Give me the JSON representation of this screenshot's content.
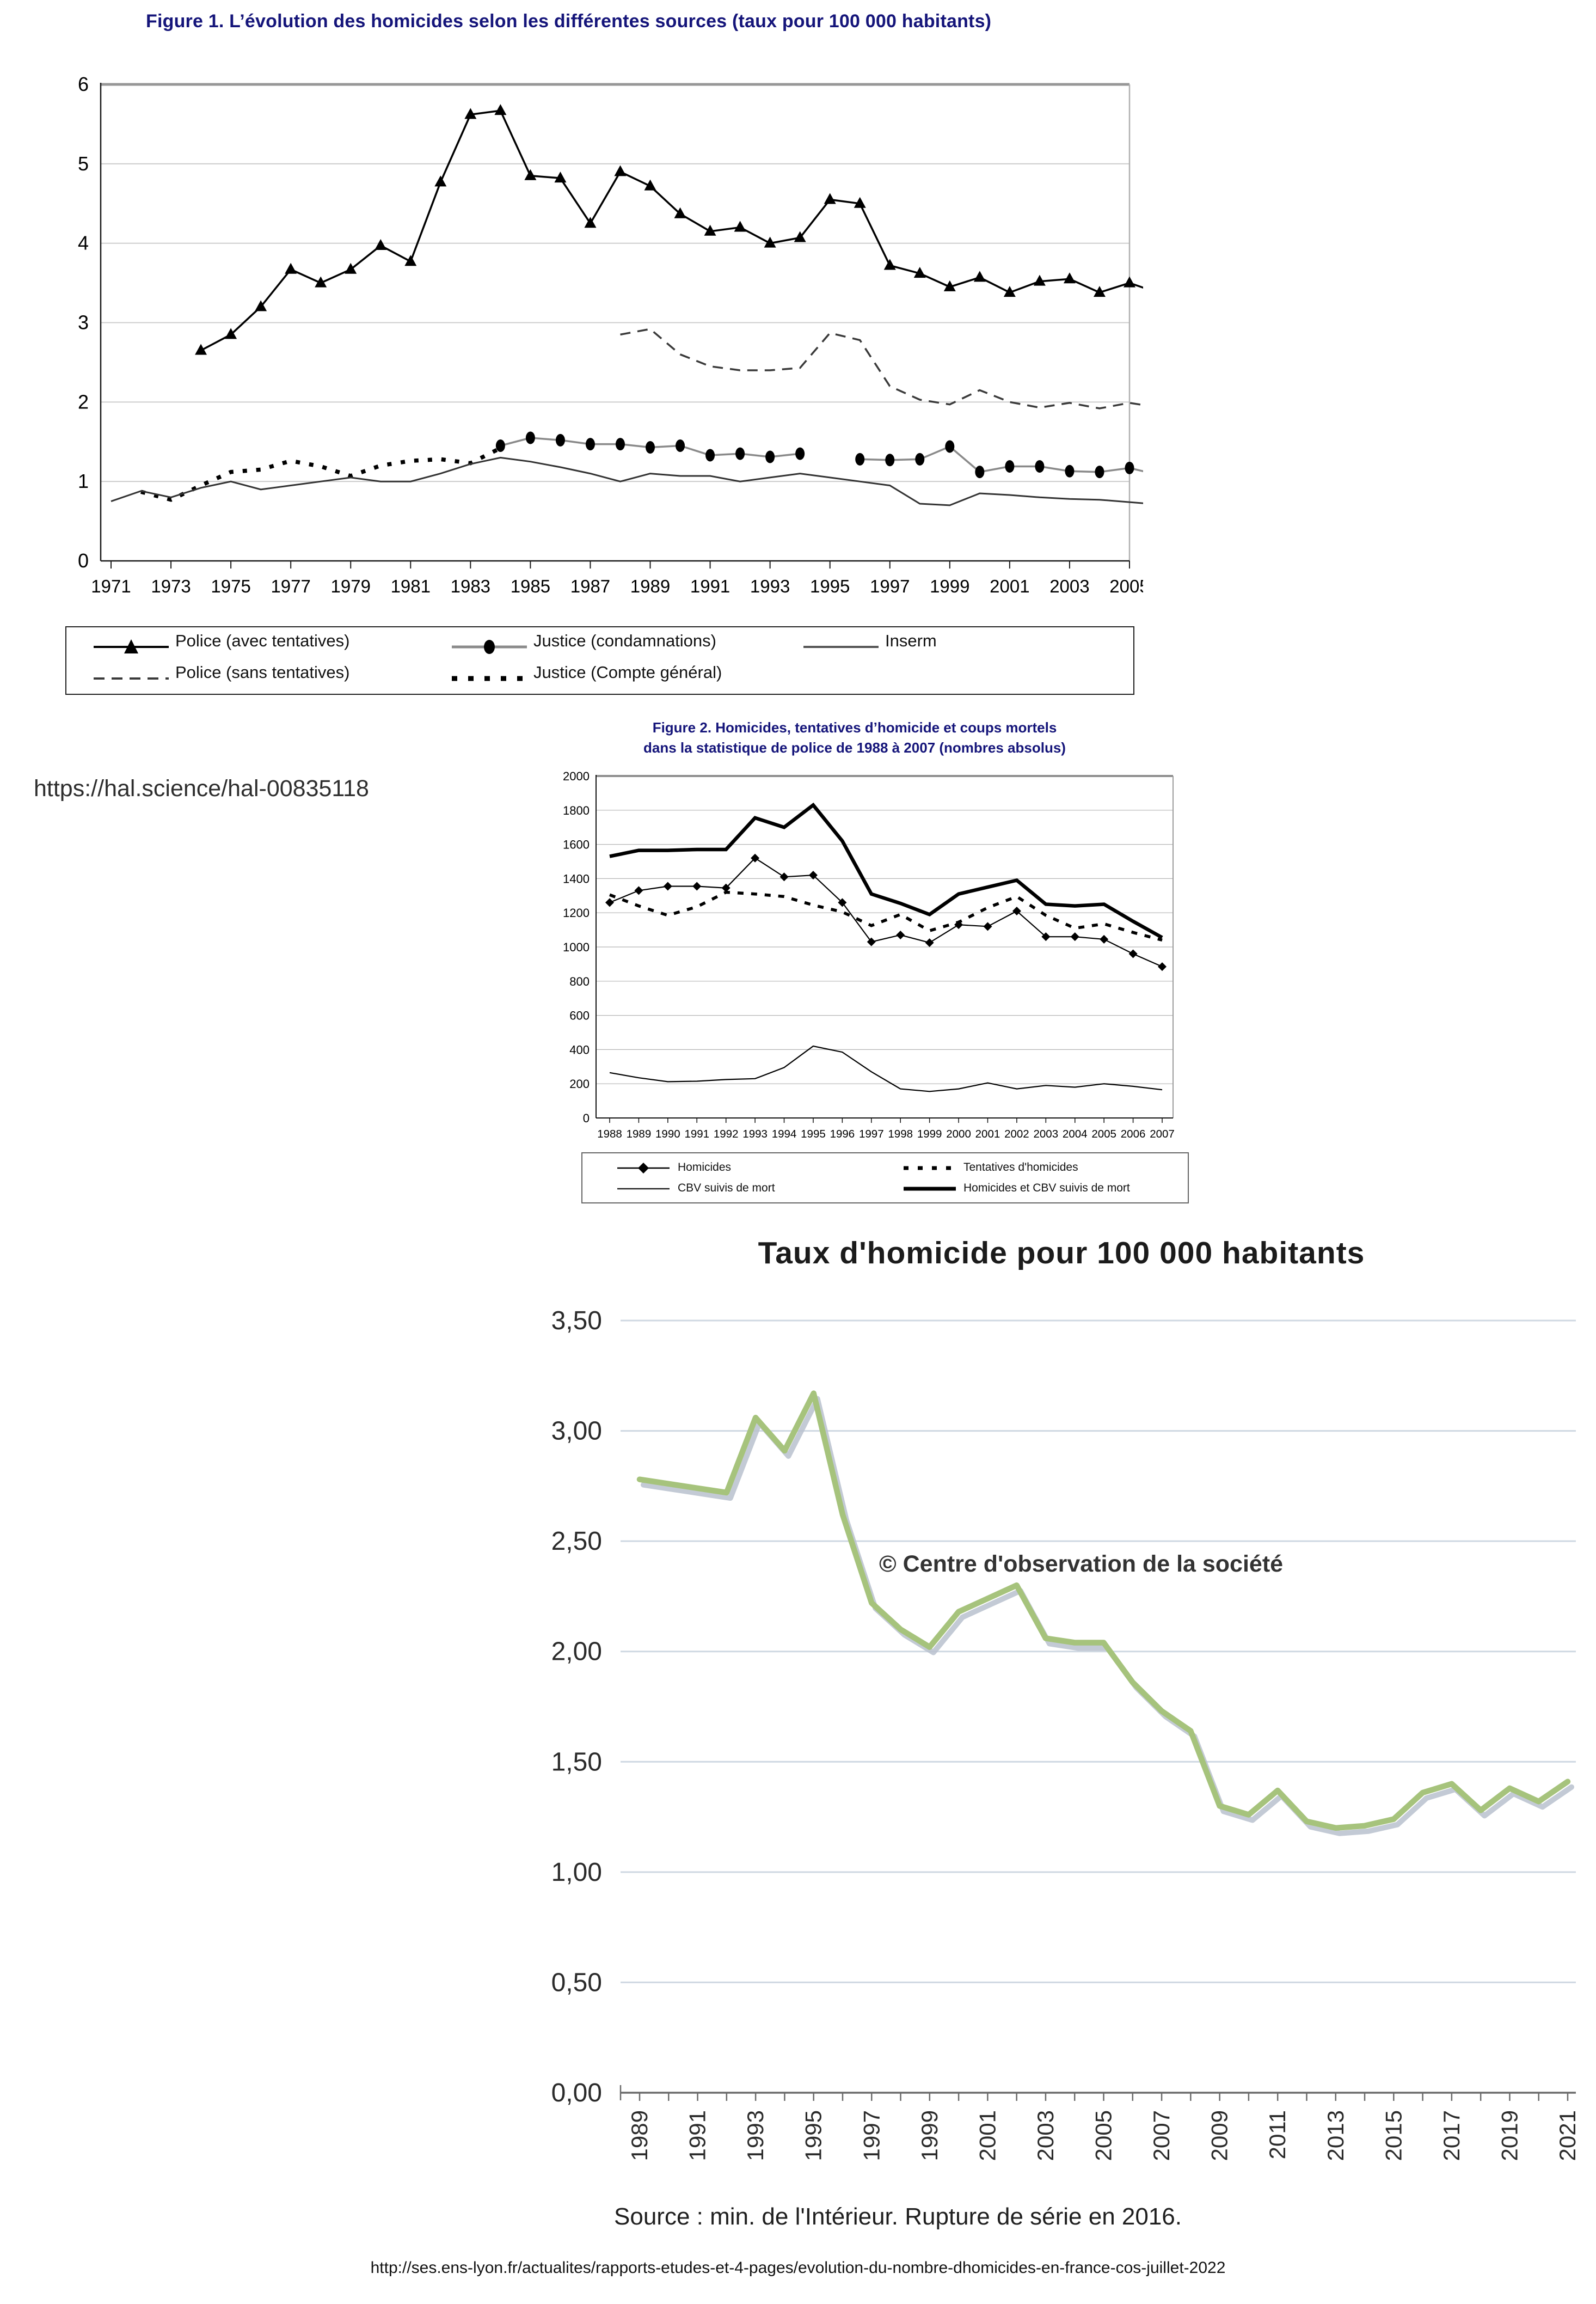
{
  "page": {
    "hal_link": "https://hal.science/hal-00835118",
    "bottom_link": "http://ses.ens-lyon.fr/actualites/rapports-etudes-et-4-pages/evolution-du-nombre-dhomicides-en-france-cos-juillet-2022"
  },
  "chart_data": [
    {
      "id": "figure1",
      "type": "line",
      "title": "Figure 1. L’évolution des homicides selon les différentes sources (taux pour 100 000 habitants)",
      "xlabel": "",
      "ylabel": "",
      "ylim": [
        0,
        6
      ],
      "y_ticks": [
        0,
        1,
        2,
        3,
        4,
        5,
        6
      ],
      "x_range": [
        1971,
        2006
      ],
      "x_tick_labels": [
        1971,
        1973,
        1975,
        1977,
        1979,
        1981,
        1983,
        1985,
        1987,
        1989,
        1991,
        1993,
        1995,
        1997,
        1999,
        2001,
        2003,
        2005
      ],
      "grid": true,
      "legend_position": "bottom",
      "legend": [
        "Police (avec tentatives)",
        "Justice (condamnations)",
        "Inserm",
        "Police (sans tentatives)",
        "Justice (Compte général)"
      ],
      "series": [
        {
          "name": "Police (avec tentatives)",
          "style": "solid",
          "marker": "triangle",
          "start_year": 1974,
          "values": [
            2.65,
            2.85,
            3.2,
            3.67,
            3.5,
            3.67,
            3.97,
            3.77,
            4.77,
            5.62,
            5.67,
            4.85,
            4.82,
            4.25,
            4.9,
            4.72,
            4.37,
            4.15,
            4.2,
            4.0,
            4.07,
            4.55,
            4.5,
            3.72,
            3.62,
            3.45,
            3.57,
            3.38,
            3.52,
            3.55,
            3.38,
            3.5,
            3.37
          ]
        },
        {
          "name": "Police (sans tentatives)",
          "style": "dashed",
          "marker": null,
          "start_year": 1988,
          "values": [
            2.85,
            2.92,
            2.6,
            2.45,
            2.4,
            2.4,
            2.43,
            2.87,
            2.78,
            2.2,
            2.03,
            1.97,
            2.15,
            2.0,
            1.93,
            1.99,
            1.92,
            1.99,
            1.93
          ]
        },
        {
          "name": "Justice (condamnations)",
          "style": "solid-gray",
          "marker": "ellipse",
          "start_year": 1984,
          "values": [
            1.45,
            1.55,
            1.52,
            1.47,
            1.47,
            1.43,
            1.45,
            1.33,
            1.35,
            1.31,
            1.35,
            null,
            1.28,
            1.27,
            1.28,
            1.44,
            1.12,
            1.19,
            1.19,
            1.13,
            1.12,
            1.17,
            1.08
          ]
        },
        {
          "name": "Justice (Compte général)",
          "style": "dotted",
          "marker": null,
          "start_year": 1972,
          "values": [
            0.87,
            0.77,
            0.95,
            1.12,
            1.15,
            1.26,
            1.19,
            1.07,
            1.2,
            1.26,
            1.28,
            1.23,
            1.42
          ]
        },
        {
          "name": "Inserm",
          "style": "solid-thin",
          "marker": null,
          "start_year": 1971,
          "values": [
            0.75,
            0.88,
            0.8,
            0.92,
            1.0,
            0.9,
            0.95,
            1.0,
            1.05,
            1.0,
            1.0,
            1.1,
            1.22,
            1.3,
            1.25,
            1.18,
            1.1,
            1.0,
            1.1,
            1.07,
            1.07,
            1.0,
            1.05,
            1.1,
            1.05,
            1.0,
            0.95,
            0.72,
            0.7,
            0.85,
            0.83,
            0.8,
            0.78,
            0.77,
            0.74,
            0.71
          ]
        }
      ]
    },
    {
      "id": "figure2",
      "type": "line",
      "title_line1": "Figure 2. Homicides, tentatives d’homicide et coups mortels",
      "title_line2": "dans la statistique de police de 1988 à 2007 (nombres absolus)",
      "ylim": [
        0,
        2000
      ],
      "y_ticks": [
        0,
        200,
        400,
        600,
        800,
        1000,
        1200,
        1400,
        1600,
        1800,
        2000
      ],
      "x_range": [
        1988,
        2007
      ],
      "x_tick_labels": [
        1988,
        1989,
        1990,
        1991,
        1992,
        1993,
        1994,
        1995,
        1996,
        1997,
        1998,
        1999,
        2000,
        2001,
        2002,
        2003,
        2004,
        2005,
        2006,
        2007
      ],
      "grid": true,
      "legend_position": "bottom",
      "legend": [
        "Homicides",
        "Tentatives d'homicides",
        "CBV suivis de mort",
        "Homicides et CBV suivis de mort"
      ],
      "series": [
        {
          "name": "Homicides",
          "style": "solid-thin",
          "marker": "diamond",
          "start_year": 1988,
          "values": [
            1260,
            1330,
            1355,
            1355,
            1345,
            1520,
            1410,
            1420,
            1260,
            1030,
            1070,
            1025,
            1130,
            1120,
            1210,
            1060,
            1060,
            1045,
            960,
            885
          ]
        },
        {
          "name": "Tentatives d'homicides",
          "style": "dotted",
          "marker": null,
          "start_year": 1988,
          "values": [
            1305,
            1240,
            1185,
            1235,
            1320,
            1310,
            1295,
            1245,
            1205,
            1125,
            1190,
            1095,
            1145,
            1230,
            1295,
            1185,
            1110,
            1135,
            1085,
            1040
          ]
        },
        {
          "name": "CBV suivis de mort",
          "style": "solid-thin",
          "marker": null,
          "start_year": 1988,
          "values": [
            265,
            235,
            212,
            215,
            225,
            230,
            295,
            420,
            385,
            270,
            170,
            155,
            170,
            205,
            170,
            190,
            180,
            200,
            185,
            165
          ]
        },
        {
          "name": "Homicides et CBV suivis de mort",
          "style": "solid-thick",
          "marker": null,
          "start_year": 1988,
          "values": [
            1530,
            1565,
            1565,
            1570,
            1570,
            1755,
            1700,
            1830,
            1620,
            1310,
            1255,
            1190,
            1310,
            1350,
            1390,
            1250,
            1240,
            1250,
            1150,
            1055
          ]
        }
      ]
    },
    {
      "id": "figure3",
      "type": "line",
      "title": "Taux d'homicide pour 100 000 habitants",
      "watermark": "© Centre d'observation de la société",
      "source": "Source : min. de l'Intérieur. Rupture de série en 2016.",
      "ylim": [
        0,
        3.5
      ],
      "y_tick_labels": [
        "0,00",
        "0,50",
        "1,00",
        "1,50",
        "2,00",
        "2,50",
        "3,00",
        "3,50"
      ],
      "y_tick_values": [
        0,
        0.5,
        1.0,
        1.5,
        2.0,
        2.5,
        3.0,
        3.5
      ],
      "x_range": [
        1989,
        2021
      ],
      "x_tick_labels": [
        1989,
        1991,
        1993,
        1995,
        1997,
        1999,
        2001,
        2003,
        2005,
        2007,
        2009,
        2011,
        2013,
        2015,
        2017,
        2019,
        2021
      ],
      "grid": true,
      "line_color": "#a6c37c",
      "shadow_color": "#b9c1ce",
      "series": [
        {
          "name": "Taux d'homicide",
          "style": "solid-green",
          "marker": null,
          "start_year": 1989,
          "values": [
            2.78,
            2.76,
            2.74,
            2.72,
            3.06,
            2.91,
            3.17,
            2.62,
            2.22,
            2.1,
            2.02,
            2.18,
            2.24,
            2.3,
            2.06,
            2.04,
            2.04,
            1.86,
            1.73,
            1.64,
            1.3,
            1.26,
            1.37,
            1.23,
            1.2,
            1.21,
            1.24,
            1.36,
            1.4,
            1.28,
            1.38,
            1.32,
            1.41
          ]
        }
      ]
    }
  ]
}
